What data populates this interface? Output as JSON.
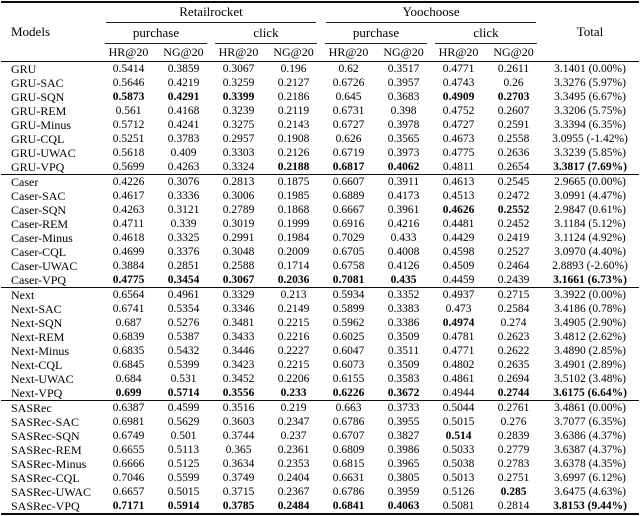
{
  "table": {
    "corner_header": "Models",
    "total_header": "Total",
    "datasets": [
      {
        "label": "Retailrocket",
        "events": [
          "purchase",
          "click"
        ]
      },
      {
        "label": "Yoochoose",
        "events": [
          "purchase",
          "click"
        ]
      }
    ],
    "metric_headers": [
      "HR@20",
      "NG@20",
      "HR@20",
      "NG@20",
      "HR@20",
      "NG@20",
      "HR@20",
      "NG@20"
    ],
    "groups": [
      {
        "name": "GRU",
        "rows": [
          {
            "model": "GRU",
            "values": [
              "0.5414",
              "0.3859",
              "0.3067",
              "0.196",
              "0.62",
              "0.3517",
              "0.4771",
              "0.2611"
            ],
            "bold": [],
            "total": "3.1401 (0.00%)",
            "total_bold": false
          },
          {
            "model": "GRU-SAC",
            "values": [
              "0.5646",
              "0.4219",
              "0.3259",
              "0.2127",
              "0.6726",
              "0.3957",
              "0.4743",
              "0.26"
            ],
            "bold": [],
            "total": "3.3276 (5.97%)",
            "total_bold": false
          },
          {
            "model": "GRU-SQN",
            "values": [
              "0.5873",
              "0.4291",
              "0.3399",
              "0.2186",
              "0.645",
              "0.3683",
              "0.4909",
              "0.2703"
            ],
            "bold": [
              0,
              1,
              2,
              6,
              7
            ],
            "total": "3.3495 (6.67%)",
            "total_bold": false
          },
          {
            "model": "GRU-REM",
            "values": [
              "0.561",
              "0.4168",
              "0.3239",
              "0.2119",
              "0.6731",
              "0.398",
              "0.4752",
              "0.2607"
            ],
            "bold": [],
            "total": "3.3206 (5.75%)",
            "total_bold": false
          },
          {
            "model": "GRU-Minus",
            "values": [
              "0.5712",
              "0.4241",
              "0.3275",
              "0.2143",
              "0.6727",
              "0.3978",
              "0.4727",
              "0.2591"
            ],
            "bold": [],
            "total": "3.3394 (6.35%)",
            "total_bold": false
          },
          {
            "model": "GRU-CQL",
            "values": [
              "0.5251",
              "0.3783",
              "0.2957",
              "0.1908",
              "0.626",
              "0.3565",
              "0.4673",
              "0.2558"
            ],
            "bold": [],
            "total": "3.0955 (-1.42%)",
            "total_bold": false
          },
          {
            "model": "GRU-UWAC",
            "values": [
              "0.5618",
              "0.409",
              "0.3303",
              "0.2126",
              "0.6719",
              "0.3973",
              "0.4775",
              "0.2636"
            ],
            "bold": [],
            "total": "3.3239 (5.85%)",
            "total_bold": false
          },
          {
            "model": "GRU-VPQ",
            "values": [
              "0.5699",
              "0.4263",
              "0.3324",
              "0.2188",
              "0.6817",
              "0.4062",
              "0.4811",
              "0.2654"
            ],
            "bold": [
              3,
              4,
              5
            ],
            "total": "3.3817 (7.69%)",
            "total_bold": true
          }
        ]
      },
      {
        "name": "Caser",
        "rows": [
          {
            "model": "Caser",
            "values": [
              "0.4226",
              "0.3076",
              "0.2813",
              "0.1875",
              "0.6607",
              "0.3911",
              "0.4613",
              "0.2545"
            ],
            "bold": [],
            "total": "2.9665 (0.00%)",
            "total_bold": false
          },
          {
            "model": "Caser-SAC",
            "values": [
              "0.4617",
              "0.3336",
              "0.3006",
              "0.1985",
              "0.6889",
              "0.4173",
              "0.4513",
              "0.2472"
            ],
            "bold": [],
            "total": "3.0991 (4.47%)",
            "total_bold": false
          },
          {
            "model": "Caser-SQN",
            "values": [
              "0.4263",
              "0.3121",
              "0.2789",
              "0.1868",
              "0.6667",
              "0.3961",
              "0.4626",
              "0.2552"
            ],
            "bold": [
              6,
              7
            ],
            "total": "2.9847 (0.61%)",
            "total_bold": false
          },
          {
            "model": "Caser-REM",
            "values": [
              "0.4711",
              "0.339",
              "0.3019",
              "0.1999",
              "0.6916",
              "0.4216",
              "0.4481",
              "0.2452"
            ],
            "bold": [],
            "total": "3.1184 (5.12%)",
            "total_bold": false
          },
          {
            "model": "Caser-Minus",
            "values": [
              "0.4618",
              "0.3325",
              "0.2991",
              "0.1984",
              "0.7029",
              "0.433",
              "0.4429",
              "0.2419"
            ],
            "bold": [],
            "total": "3.1124 (4.92%)",
            "total_bold": false
          },
          {
            "model": "Caser-CQL",
            "values": [
              "0.4699",
              "0.3376",
              "0.3048",
              "0.2009",
              "0.6705",
              "0.4008",
              "0.4598",
              "0.2527"
            ],
            "bold": [],
            "total": "3.0970 (4.40%)",
            "total_bold": false
          },
          {
            "model": "Caser-UWAC",
            "values": [
              "0.3884",
              "0.2851",
              "0.2588",
              "0.1714",
              "0.6758",
              "0.4126",
              "0.4509",
              "0.2464"
            ],
            "bold": [],
            "total": "2.8893 (-2.60%)",
            "total_bold": false
          },
          {
            "model": "Caser-VPQ",
            "values": [
              "0.4775",
              "0.3454",
              "0.3067",
              "0.2036",
              "0.7081",
              "0.435",
              "0.4459",
              "0.2439"
            ],
            "bold": [
              0,
              1,
              2,
              3,
              4,
              5
            ],
            "total": "3.1661 (6.73%)",
            "total_bold": true
          }
        ]
      },
      {
        "name": "Next",
        "rows": [
          {
            "model": "Next",
            "values": [
              "0.6564",
              "0.4961",
              "0.3329",
              "0.213",
              "0.5934",
              "0.3352",
              "0.4937",
              "0.2715"
            ],
            "bold": [],
            "total": "3.3922 (0.00%)",
            "total_bold": false
          },
          {
            "model": "Next-SAC",
            "values": [
              "0.6741",
              "0.5354",
              "0.3346",
              "0.2149",
              "0.5899",
              "0.3383",
              "0.473",
              "0.2584"
            ],
            "bold": [],
            "total": "3.4186 (0.78%)",
            "total_bold": false
          },
          {
            "model": "Next-SQN",
            "values": [
              "0.687",
              "0.5276",
              "0.3481",
              "0.2215",
              "0.5962",
              "0.3386",
              "0.4974",
              "0.274"
            ],
            "bold": [
              6
            ],
            "total": "3.4905 (2.90%)",
            "total_bold": false
          },
          {
            "model": "Next-REM",
            "values": [
              "0.6839",
              "0.5387",
              "0.3433",
              "0.2216",
              "0.6025",
              "0.3509",
              "0.4781",
              "0.2623"
            ],
            "bold": [],
            "total": "3.4812 (2.62%)",
            "total_bold": false
          },
          {
            "model": "Next-Minus",
            "values": [
              "0.6835",
              "0.5432",
              "0.3446",
              "0.2227",
              "0.6047",
              "0.3511",
              "0.4771",
              "0.2622"
            ],
            "bold": [],
            "total": "3.4890 (2.85%)",
            "total_bold": false
          },
          {
            "model": "Next-CQL",
            "values": [
              "0.6845",
              "0.5399",
              "0.3423",
              "0.2215",
              "0.6073",
              "0.3509",
              "0.4802",
              "0.2635"
            ],
            "bold": [],
            "total": "3.4901 (2.89%)",
            "total_bold": false
          },
          {
            "model": "Next-UWAC",
            "values": [
              "0.684",
              "0.531",
              "0.3452",
              "0.2206",
              "0.6155",
              "0.3583",
              "0.4861",
              "0.2694"
            ],
            "bold": [],
            "total": "3.5102 (3.48%)",
            "total_bold": false
          },
          {
            "model": "Next-VPQ",
            "values": [
              "0.699",
              "0.5714",
              "0.3556",
              "0.233",
              "0.6226",
              "0.3672",
              "0.4944",
              "0.2744"
            ],
            "bold": [
              0,
              1,
              2,
              3,
              4,
              5,
              7
            ],
            "total": "3.6175 (6.64%)",
            "total_bold": true
          }
        ]
      },
      {
        "name": "SASRec",
        "rows": [
          {
            "model": "SASRec",
            "values": [
              "0.6387",
              "0.4599",
              "0.3516",
              "0.219",
              "0.663",
              "0.3733",
              "0.5044",
              "0.2761"
            ],
            "bold": [],
            "total": "3.4861 (0.00%)",
            "total_bold": false
          },
          {
            "model": "SASRec-SAC",
            "values": [
              "0.6981",
              "0.5629",
              "0.3603",
              "0.2347",
              "0.6786",
              "0.3955",
              "0.5015",
              "0.276"
            ],
            "bold": [],
            "total": "3.7077 (6.35%)",
            "total_bold": false
          },
          {
            "model": "SASRec-SQN",
            "values": [
              "0.6749",
              "0.501",
              "0.3744",
              "0.237",
              "0.6707",
              "0.3827",
              "0.514",
              "0.2839"
            ],
            "bold": [
              6
            ],
            "total": "3.6386 (4.37%)",
            "total_bold": false
          },
          {
            "model": "SASRec-REM",
            "values": [
              "0.6655",
              "0.5113",
              "0.365",
              "0.2361",
              "0.6809",
              "0.3986",
              "0.5033",
              "0.2779"
            ],
            "bold": [],
            "total": "3.6387 (4.37%)",
            "total_bold": false
          },
          {
            "model": "SASRec-Minus",
            "values": [
              "0.6666",
              "0.5125",
              "0.3634",
              "0.2353",
              "0.6815",
              "0.3965",
              "0.5038",
              "0.2783"
            ],
            "bold": [],
            "total": "3.6378 (4.35%)",
            "total_bold": false
          },
          {
            "model": "SASRec-CQL",
            "values": [
              "0.7046",
              "0.5599",
              "0.3749",
              "0.2404",
              "0.6631",
              "0.3805",
              "0.5013",
              "0.2751"
            ],
            "bold": [],
            "total": "3.6997 (6.12%)",
            "total_bold": false
          },
          {
            "model": "SASRec-UWAC",
            "values": [
              "0.6657",
              "0.5015",
              "0.3715",
              "0.2367",
              "0.6786",
              "0.3959",
              "0.5126",
              "0.285"
            ],
            "bold": [
              7
            ],
            "total": "3.6475 (4.63%)",
            "total_bold": false
          },
          {
            "model": "SASRec-VPQ",
            "values": [
              "0.7171",
              "0.5914",
              "0.3785",
              "0.2484",
              "0.6841",
              "0.4063",
              "0.5081",
              "0.2814"
            ],
            "bold": [
              0,
              1,
              2,
              3,
              4,
              5
            ],
            "total": "3.8153 (9.44%)",
            "total_bold": true
          }
        ]
      }
    ]
  }
}
